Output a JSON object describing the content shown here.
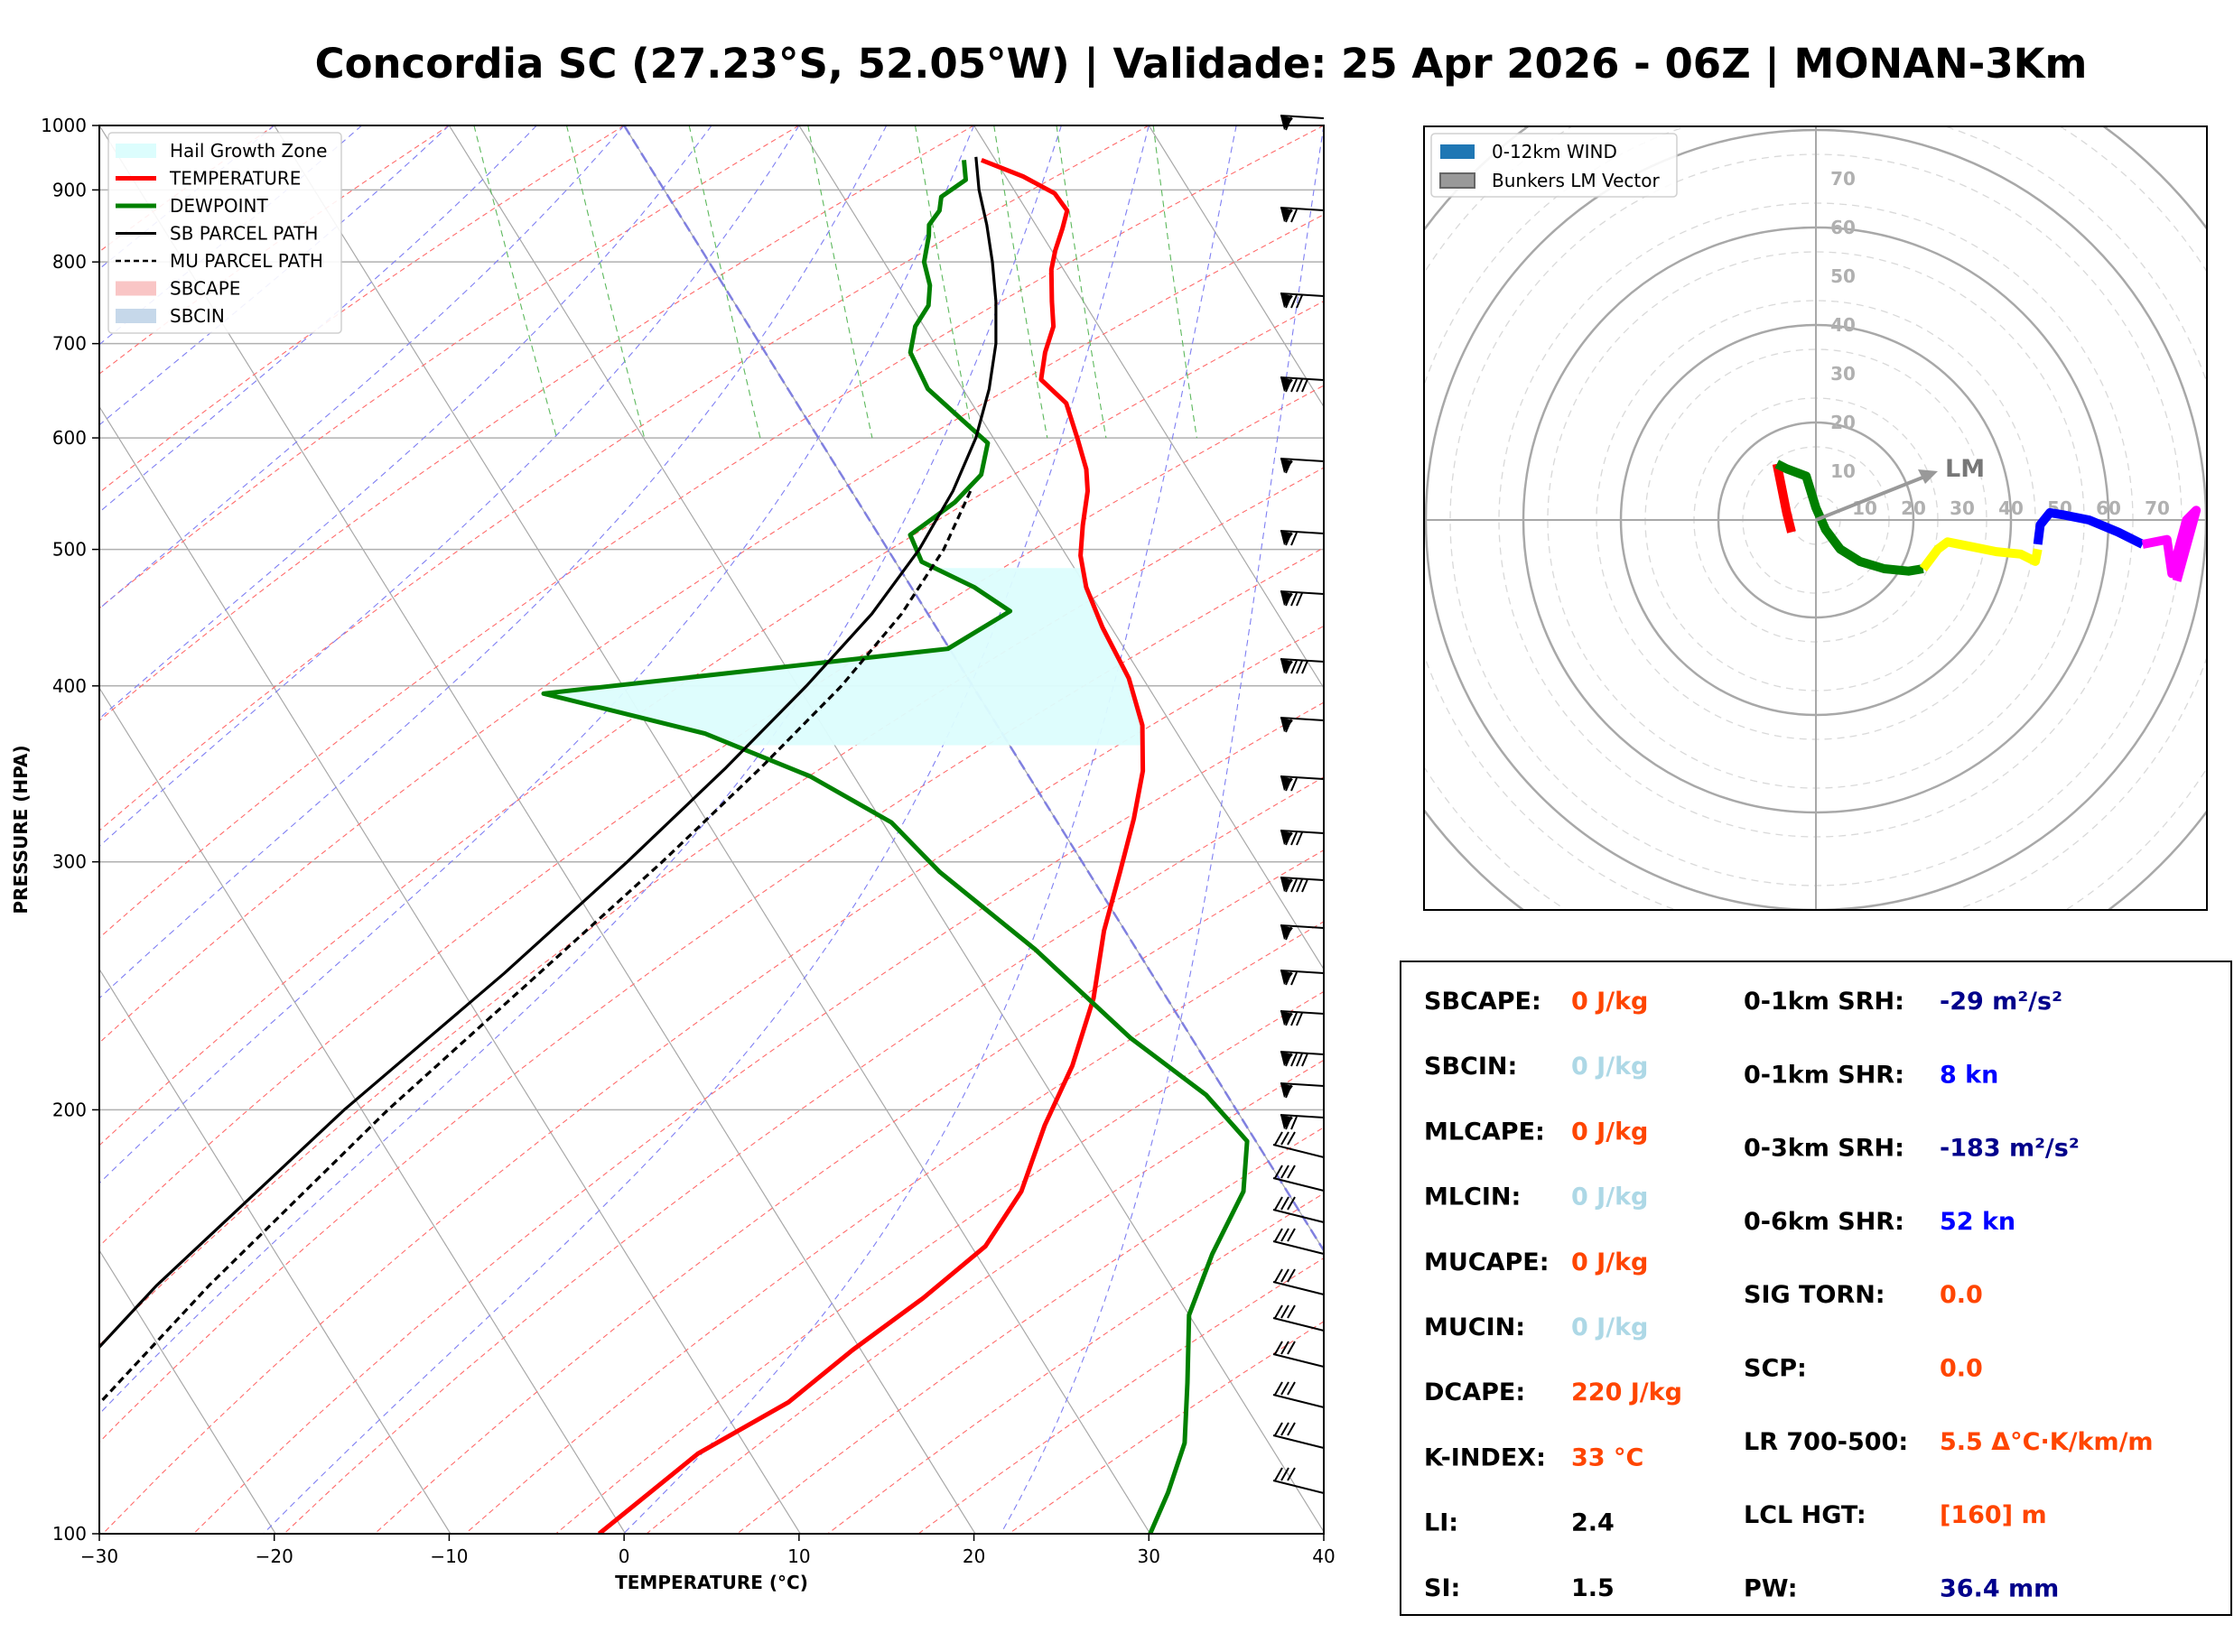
{
  "title": "Concordia SC (27.23°S, 52.05°W) | Validade: 25 Apr 2026 - 06Z | MONAN-3Km",
  "chart_data": [
    {
      "type": "line",
      "subtype": "skew-t log-p",
      "xlabel": "TEMPERATURE (°C)",
      "ylabel": "PRESSURE (HPA)",
      "xlim": [
        -30,
        40
      ],
      "ylim": [
        1000,
        100
      ],
      "y_scale": "log",
      "x_ticks": [
        "−30",
        "−20",
        "−10",
        "0",
        "10",
        "20",
        "30",
        "40"
      ],
      "y_ticks": [
        "100",
        "200",
        "300",
        "400",
        "500",
        "600",
        "700",
        "800",
        "900",
        "1000"
      ],
      "grid": true,
      "legend_position": "top-left",
      "legend": [
        {
          "label": "Hail Growth Zone",
          "color": "#dcfdfd"
        },
        {
          "label": "TEMPERATURE",
          "color": "#ff0000"
        },
        {
          "label": "DEWPOINT",
          "color": "#008000"
        },
        {
          "label": "SB PARCEL PATH",
          "color": "#000000"
        },
        {
          "label": "MU PARCEL PATH",
          "color": "#000000"
        },
        {
          "label": "SBCAPE",
          "color": "#f9c5c5"
        },
        {
          "label": "SBCIN",
          "color": "#c6d8ea"
        }
      ],
      "series": [
        {
          "name": "TEMPERATURE",
          "color": "#ff0000",
          "points": [
            [
              945,
              19.2
            ],
            [
              920,
              21
            ],
            [
              895,
              22.2
            ],
            [
              870,
              22.3
            ],
            [
              845,
              21.4
            ],
            [
              815,
              20.2
            ],
            [
              790,
              19.3
            ],
            [
              750,
              18.2
            ],
            [
              720,
              17.4
            ],
            [
              690,
              16
            ],
            [
              660,
              14.8
            ],
            [
              635,
              15.4
            ],
            [
              600,
              14.8
            ],
            [
              570,
              14.2
            ],
            [
              550,
              13.5
            ],
            [
              520,
              12
            ],
            [
              495,
              10.8
            ],
            [
              470,
              10
            ],
            [
              440,
              9.5
            ],
            [
              405,
              9.2
            ],
            [
              375,
              8.3
            ],
            [
              348,
              6.7
            ],
            [
              322,
              4.5
            ],
            [
              295,
              1.8
            ],
            [
              268,
              -1.2
            ],
            [
              240,
              -4.2
            ],
            [
              215,
              -7.8
            ],
            [
              195,
              -11.5
            ],
            [
              175,
              -15.2
            ],
            [
              160,
              -19.2
            ],
            [
              147,
              -24.6
            ],
            [
              135,
              -30.5
            ],
            [
              124,
              -36
            ],
            [
              114,
              -43
            ],
            [
              100,
              -51.5
            ]
          ]
        },
        {
          "name": "DEWPOINT",
          "color": "#008000",
          "points": [
            [
              945,
              18.2
            ],
            [
              915,
              17.6
            ],
            [
              890,
              15.6
            ],
            [
              870,
              15
            ],
            [
              850,
              13.9
            ],
            [
              835,
              13.5
            ],
            [
              800,
              12.3
            ],
            [
              770,
              11.8
            ],
            [
              745,
              11
            ],
            [
              720,
              9.5
            ],
            [
              690,
              8.3
            ],
            [
              650,
              8
            ],
            [
              620,
              8.8
            ],
            [
              595,
              9.5
            ],
            [
              565,
              8
            ],
            [
              540,
              5.5
            ],
            [
              512,
              1.8
            ],
            [
              490,
              1.5
            ],
            [
              470,
              3.6
            ],
            [
              452,
              4.8
            ],
            [
              425,
              -0.1
            ],
            [
              395,
              -24.8
            ],
            [
              370,
              -17
            ],
            [
              345,
              -12.5
            ],
            [
              320,
              -9.5
            ],
            [
              295,
              -8.5
            ],
            [
              260,
              -5.8
            ],
            [
              225,
              -3.5
            ],
            [
              205,
              -1.2
            ],
            [
              190,
              -0.5
            ],
            [
              175,
              -2.5
            ],
            [
              158,
              -6.5
            ],
            [
              143,
              -10
            ],
            [
              128,
              -12.5
            ],
            [
              116,
              -14.8
            ],
            [
              107,
              -17.5
            ],
            [
              100,
              -20
            ]
          ]
        },
        {
          "name": "SB PARCEL PATH",
          "color": "#000000",
          "style": "solid",
          "points": [
            [
              950,
              19
            ],
            [
              900,
              18
            ],
            [
              850,
              17.2
            ],
            [
              800,
              16.2
            ],
            [
              750,
              15
            ],
            [
              700,
              13.5
            ],
            [
              650,
              11.5
            ],
            [
              600,
              9
            ],
            [
              550,
              5.8
            ],
            [
              500,
              1.8
            ],
            [
              450,
              -3.2
            ],
            [
              400,
              -9.5
            ],
            [
              350,
              -17
            ],
            [
              300,
              -26
            ],
            [
              250,
              -37
            ],
            [
              200,
              -51
            ],
            [
              150,
              -68
            ],
            [
              100,
              -90
            ]
          ]
        },
        {
          "name": "MU PARCEL PATH",
          "color": "#000000",
          "style": "dashed",
          "points": [
            [
              550,
              6.8
            ],
            [
              500,
              3.2
            ],
            [
              450,
              -1.5
            ],
            [
              400,
              -7.5
            ],
            [
              350,
              -15
            ],
            [
              300,
              -24
            ],
            [
              250,
              -35
            ],
            [
              200,
              -48.5
            ],
            [
              150,
              -65
            ],
            [
              100,
              -87
            ]
          ]
        }
      ]
    },
    {
      "type": "line",
      "subtype": "hodograph",
      "rings": [
        10,
        20,
        30,
        40,
        50,
        60,
        70
      ],
      "ring_labels": [
        "10",
        "20",
        "30",
        "40",
        "50",
        "60",
        "70"
      ],
      "legend_position": "top-left",
      "legend": [
        {
          "label": "0-12km WIND",
          "color": "#1f77b4"
        },
        {
          "label": "Bunkers LM Vector",
          "color": "#999999"
        }
      ],
      "bunkers_lm": {
        "label": "LM",
        "u": 25,
        "v": 10
      },
      "series": [
        {
          "name": "0-1km",
          "color": "#ff0000",
          "points": [
            [
              -5,
              -2.5
            ],
            [
              -6,
              1.5
            ],
            [
              -8,
              11.5
            ]
          ]
        },
        {
          "name": "1-3km",
          "color": "#008000",
          "points": [
            [
              -8,
              11.5
            ],
            [
              -6,
              10.5
            ],
            [
              -2,
              9
            ],
            [
              0,
              2.5
            ],
            [
              2,
              -2
            ],
            [
              5,
              -6
            ],
            [
              9,
              -8.5
            ],
            [
              14,
              -10
            ],
            [
              19,
              -10.5
            ],
            [
              22,
              -10
            ]
          ]
        },
        {
          "name": "3-6km",
          "color": "#ffff00",
          "points": [
            [
              22,
              -10
            ],
            [
              25,
              -6
            ],
            [
              27,
              -4.5
            ],
            [
              32,
              -5.5
            ],
            [
              37,
              -6.5
            ],
            [
              42,
              -7
            ],
            [
              45,
              -8.5
            ],
            [
              45.5,
              -6
            ]
          ]
        },
        {
          "name": "6-9km",
          "color": "#0000ff",
          "points": [
            [
              45.5,
              -5
            ],
            [
              46,
              -1
            ],
            [
              48,
              1.5
            ],
            [
              51,
              1
            ],
            [
              56,
              0
            ],
            [
              62,
              -2.5
            ],
            [
              67,
              -5
            ]
          ]
        },
        {
          "name": "9-12km",
          "color": "#ff00ff",
          "points": [
            [
              67,
              -5
            ],
            [
              72,
              -4
            ],
            [
              72.5,
              -7.5
            ],
            [
              73,
              -11
            ],
            [
              76,
              0
            ],
            [
              78,
              2
            ],
            [
              74,
              -12.5
            ]
          ]
        }
      ]
    }
  ],
  "indices": {
    "left": [
      {
        "label": "SBCAPE:",
        "value": "0 J/kg",
        "color": "#ff4500"
      },
      {
        "label": "SBCIN:",
        "value": "0 J/kg",
        "color": "#add8e6"
      },
      {
        "label": "MLCAPE:",
        "value": "0 J/kg",
        "color": "#ff4500"
      },
      {
        "label": "MLCIN:",
        "value": "0 J/kg",
        "color": "#add8e6"
      },
      {
        "label": "MUCAPE:",
        "value": "0 J/kg",
        "color": "#ff4500"
      },
      {
        "label": "MUCIN:",
        "value": "0 J/kg",
        "color": "#add8e6"
      },
      {
        "label": "DCAPE:",
        "value": "220 J/kg",
        "color": "#ff4500"
      },
      {
        "label": "K-INDEX:",
        "value": "33 °C",
        "color": "#ff4500"
      },
      {
        "label": "LI:",
        "value": "2.4",
        "color": "#000000"
      },
      {
        "label": "SI:",
        "value": "1.5",
        "color": "#000000"
      }
    ],
    "right": [
      {
        "label": "0-1km SRH:",
        "value": "-29 m²/s²",
        "color": "#00008b"
      },
      {
        "label": "0-1km SHR:",
        "value": "8 kn",
        "color": "#0000ff"
      },
      {
        "label": "0-3km SRH:",
        "value": "-183 m²/s²",
        "color": "#00008b"
      },
      {
        "label": "0-6km SHR:",
        "value": "52 kn",
        "color": "#0000ff"
      },
      {
        "label": "SIG TORN:",
        "value": "0.0",
        "color": "#ff4500"
      },
      {
        "label": "SCP:",
        "value": "0.0",
        "color": "#ff4500"
      },
      {
        "label": "LR 700-500:",
        "value": "5.5 Δ°C·K/km/m",
        "color": "#ff4500"
      },
      {
        "label": "LCL HGT:",
        "value": "[160] m",
        "color": "#ff4500"
      },
      {
        "label": "PW:",
        "value": "36.4 mm",
        "color": "#00008b"
      }
    ]
  }
}
